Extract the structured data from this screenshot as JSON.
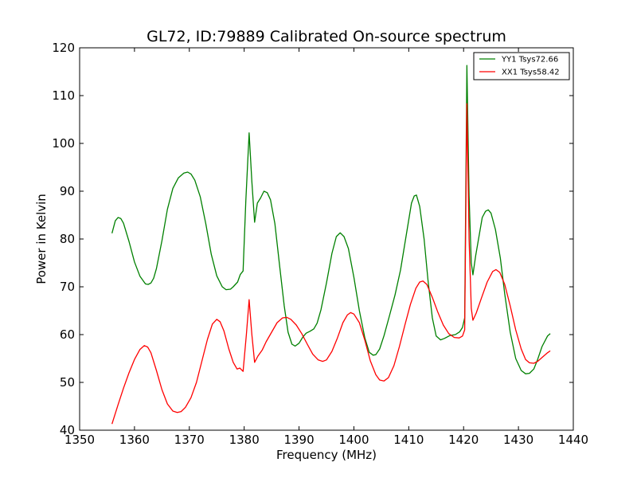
{
  "chart_data": {
    "type": "line",
    "title": "GL72, ID:79889 Calibrated On-source spectrum",
    "xlabel": "Frequency (MHz)",
    "ylabel": "Power in Kelvin",
    "xlim": [
      1350,
      1440
    ],
    "ylim": [
      40,
      120
    ],
    "xticks": [
      "1350",
      "1360",
      "1370",
      "1380",
      "1390",
      "1400",
      "1410",
      "1420",
      "1430",
      "1440"
    ],
    "yticks": [
      "40",
      "50",
      "60",
      "70",
      "80",
      "90",
      "100",
      "110",
      "120"
    ],
    "grid": false,
    "legend_position": "top-right",
    "series": [
      {
        "name": "YY1 Tsys72.66",
        "color": "#008000",
        "points": [
          [
            1355.9,
            81.2
          ],
          [
            1356.5,
            83.8
          ],
          [
            1357.0,
            84.5
          ],
          [
            1357.5,
            84.3
          ],
          [
            1358.0,
            83.3
          ],
          [
            1359.0,
            79.5
          ],
          [
            1360.0,
            75.2
          ],
          [
            1361.0,
            72.2
          ],
          [
            1362.0,
            70.6
          ],
          [
            1362.5,
            70.5
          ],
          [
            1363.0,
            70.8
          ],
          [
            1363.5,
            71.8
          ],
          [
            1364.0,
            73.8
          ],
          [
            1365.0,
            79.6
          ],
          [
            1366.0,
            86.2
          ],
          [
            1367.0,
            90.6
          ],
          [
            1368.0,
            92.8
          ],
          [
            1369.0,
            93.8
          ],
          [
            1369.7,
            94.0
          ],
          [
            1370.3,
            93.6
          ],
          [
            1371.0,
            92.3
          ],
          [
            1372.0,
            88.8
          ],
          [
            1373.0,
            83.2
          ],
          [
            1374.0,
            76.8
          ],
          [
            1375.0,
            72.3
          ],
          [
            1376.0,
            70.0
          ],
          [
            1376.7,
            69.4
          ],
          [
            1377.5,
            69.5
          ],
          [
            1378.0,
            70.0
          ],
          [
            1378.8,
            71.0
          ],
          [
            1379.3,
            72.6
          ],
          [
            1379.8,
            73.3
          ],
          [
            1380.3,
            88.0
          ],
          [
            1380.9,
            102.2
          ],
          [
            1381.4,
            92.0
          ],
          [
            1381.9,
            83.5
          ],
          [
            1382.4,
            87.5
          ],
          [
            1383.0,
            88.6
          ],
          [
            1383.6,
            90.0
          ],
          [
            1384.2,
            89.7
          ],
          [
            1384.8,
            88.2
          ],
          [
            1385.6,
            83.2
          ],
          [
            1386.5,
            74.0
          ],
          [
            1387.3,
            66.0
          ],
          [
            1388.0,
            60.5
          ],
          [
            1388.7,
            58.0
          ],
          [
            1389.3,
            57.6
          ],
          [
            1390.0,
            58.2
          ],
          [
            1390.7,
            59.5
          ],
          [
            1391.3,
            60.3
          ],
          [
            1392.0,
            60.7
          ],
          [
            1392.7,
            61.2
          ],
          [
            1393.3,
            62.4
          ],
          [
            1394.0,
            65.2
          ],
          [
            1395.0,
            70.8
          ],
          [
            1396.0,
            77.0
          ],
          [
            1396.8,
            80.5
          ],
          [
            1397.5,
            81.3
          ],
          [
            1398.2,
            80.5
          ],
          [
            1399.0,
            78.0
          ],
          [
            1400.0,
            72.0
          ],
          [
            1401.0,
            65.0
          ],
          [
            1402.0,
            59.3
          ],
          [
            1402.8,
            56.3
          ],
          [
            1403.5,
            55.7
          ],
          [
            1404.0,
            55.8
          ],
          [
            1404.7,
            57.0
          ],
          [
            1405.5,
            59.8
          ],
          [
            1406.5,
            64.0
          ],
          [
            1407.5,
            68.3
          ],
          [
            1408.5,
            73.5
          ],
          [
            1409.5,
            80.5
          ],
          [
            1410.5,
            87.5
          ],
          [
            1411.0,
            89.0
          ],
          [
            1411.4,
            89.2
          ],
          [
            1412.0,
            86.8
          ],
          [
            1412.8,
            80.0
          ],
          [
            1413.5,
            71.5
          ],
          [
            1414.3,
            63.5
          ],
          [
            1415.0,
            59.7
          ],
          [
            1415.8,
            58.9
          ],
          [
            1416.5,
            59.2
          ],
          [
            1417.5,
            59.8
          ],
          [
            1418.5,
            60.0
          ],
          [
            1419.3,
            60.6
          ],
          [
            1419.8,
            61.5
          ],
          [
            1420.2,
            63.5
          ],
          [
            1420.6,
            116.3
          ],
          [
            1421.0,
            89.0
          ],
          [
            1421.4,
            75.0
          ],
          [
            1421.7,
            72.5
          ],
          [
            1422.2,
            76.5
          ],
          [
            1422.8,
            80.5
          ],
          [
            1423.4,
            84.5
          ],
          [
            1424.0,
            85.8
          ],
          [
            1424.5,
            86.1
          ],
          [
            1425.0,
            85.4
          ],
          [
            1425.8,
            82.0
          ],
          [
            1426.7,
            76.0
          ],
          [
            1427.5,
            68.5
          ],
          [
            1428.5,
            60.5
          ],
          [
            1429.5,
            55.0
          ],
          [
            1430.5,
            52.5
          ],
          [
            1431.3,
            51.8
          ],
          [
            1432.0,
            51.9
          ],
          [
            1432.8,
            52.8
          ],
          [
            1433.5,
            54.8
          ],
          [
            1434.3,
            57.5
          ],
          [
            1435.3,
            59.7
          ],
          [
            1435.8,
            60.2
          ]
        ]
      },
      {
        "name": "XX1 Tsys58.42",
        "color": "#ff0000",
        "points": [
          [
            1355.9,
            41.3
          ],
          [
            1357.0,
            45.3
          ],
          [
            1358.0,
            48.8
          ],
          [
            1359.0,
            52.0
          ],
          [
            1360.0,
            54.8
          ],
          [
            1361.0,
            56.9
          ],
          [
            1361.8,
            57.7
          ],
          [
            1362.4,
            57.4
          ],
          [
            1363.0,
            56.2
          ],
          [
            1364.0,
            52.5
          ],
          [
            1365.0,
            48.5
          ],
          [
            1366.0,
            45.5
          ],
          [
            1367.0,
            44.0
          ],
          [
            1367.8,
            43.7
          ],
          [
            1368.5,
            43.9
          ],
          [
            1369.3,
            44.8
          ],
          [
            1370.3,
            46.8
          ],
          [
            1371.3,
            50.0
          ],
          [
            1372.3,
            54.5
          ],
          [
            1373.3,
            59.0
          ],
          [
            1374.2,
            62.2
          ],
          [
            1375.0,
            63.2
          ],
          [
            1375.6,
            62.7
          ],
          [
            1376.3,
            60.8
          ],
          [
            1377.2,
            57.0
          ],
          [
            1378.0,
            54.2
          ],
          [
            1378.7,
            52.8
          ],
          [
            1379.2,
            53.0
          ],
          [
            1379.8,
            52.3
          ],
          [
            1380.4,
            60.0
          ],
          [
            1380.9,
            67.3
          ],
          [
            1381.4,
            60.0
          ],
          [
            1381.9,
            54.2
          ],
          [
            1382.5,
            55.5
          ],
          [
            1383.3,
            56.8
          ],
          [
            1384.0,
            58.5
          ],
          [
            1385.0,
            60.5
          ],
          [
            1386.0,
            62.5
          ],
          [
            1387.0,
            63.5
          ],
          [
            1387.8,
            63.6
          ],
          [
            1388.5,
            63.2
          ],
          [
            1389.5,
            62.0
          ],
          [
            1390.5,
            60.2
          ],
          [
            1391.5,
            58.0
          ],
          [
            1392.5,
            55.9
          ],
          [
            1393.5,
            54.7
          ],
          [
            1394.3,
            54.4
          ],
          [
            1395.0,
            54.7
          ],
          [
            1396.0,
            56.5
          ],
          [
            1397.0,
            59.3
          ],
          [
            1398.0,
            62.5
          ],
          [
            1398.8,
            64.1
          ],
          [
            1399.4,
            64.6
          ],
          [
            1400.0,
            64.3
          ],
          [
            1401.0,
            62.5
          ],
          [
            1402.0,
            58.8
          ],
          [
            1403.0,
            54.5
          ],
          [
            1404.0,
            51.6
          ],
          [
            1404.7,
            50.5
          ],
          [
            1405.5,
            50.3
          ],
          [
            1406.3,
            51.0
          ],
          [
            1407.3,
            53.5
          ],
          [
            1408.3,
            57.5
          ],
          [
            1409.3,
            62.0
          ],
          [
            1410.3,
            66.3
          ],
          [
            1411.3,
            69.7
          ],
          [
            1412.0,
            71.0
          ],
          [
            1412.6,
            71.2
          ],
          [
            1413.3,
            70.5
          ],
          [
            1414.3,
            67.8
          ],
          [
            1415.3,
            64.7
          ],
          [
            1416.3,
            62.0
          ],
          [
            1417.3,
            60.2
          ],
          [
            1418.3,
            59.4
          ],
          [
            1419.2,
            59.3
          ],
          [
            1419.8,
            59.7
          ],
          [
            1420.2,
            61.0
          ],
          [
            1420.6,
            108.3
          ],
          [
            1421.0,
            80.0
          ],
          [
            1421.4,
            65.5
          ],
          [
            1421.7,
            63.0
          ],
          [
            1422.3,
            64.5
          ],
          [
            1423.3,
            67.8
          ],
          [
            1424.3,
            71.0
          ],
          [
            1425.3,
            73.2
          ],
          [
            1425.9,
            73.6
          ],
          [
            1426.6,
            73.0
          ],
          [
            1427.5,
            70.5
          ],
          [
            1428.5,
            66.0
          ],
          [
            1429.5,
            61.0
          ],
          [
            1430.5,
            57.0
          ],
          [
            1431.3,
            54.8
          ],
          [
            1432.0,
            54.1
          ],
          [
            1432.8,
            54.0
          ],
          [
            1433.5,
            54.4
          ],
          [
            1434.3,
            55.2
          ],
          [
            1435.3,
            56.2
          ],
          [
            1435.8,
            56.6
          ]
        ]
      }
    ]
  }
}
